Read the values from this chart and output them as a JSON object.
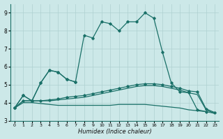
{
  "xlabel": "Humidex (Indice chaleur)",
  "background_color": "#cce8e8",
  "grid_color": "#aed0d0",
  "line_color": "#1a7068",
  "xlim": [
    -0.5,
    23.5
  ],
  "ylim": [
    3.0,
    9.5
  ],
  "yticks": [
    3,
    4,
    5,
    6,
    7,
    8,
    9
  ],
  "xticks": [
    0,
    1,
    2,
    3,
    4,
    5,
    6,
    7,
    8,
    9,
    10,
    11,
    12,
    13,
    14,
    15,
    16,
    17,
    18,
    19,
    20,
    21,
    22,
    23
  ],
  "series_main_x": [
    0,
    1,
    2,
    3,
    4,
    5,
    6,
    7,
    8,
    9,
    10,
    11,
    12,
    13,
    14,
    15,
    16,
    17,
    18,
    19,
    20,
    21,
    22
  ],
  "series_main_y": [
    3.7,
    4.4,
    4.1,
    5.1,
    5.8,
    5.7,
    5.3,
    5.15,
    7.75,
    7.6,
    8.5,
    8.4,
    8.0,
    8.5,
    8.5,
    9.0,
    8.7,
    6.8,
    5.1,
    4.6,
    4.55,
    3.6,
    3.5
  ],
  "series_small_x": [
    0,
    1,
    2,
    3,
    4,
    5,
    6,
    7
  ],
  "series_small_y": [
    3.7,
    4.4,
    4.1,
    5.1,
    5.8,
    5.7,
    5.3,
    5.15
  ],
  "series_flat1_x": [
    0,
    1,
    2,
    3,
    4,
    5,
    6,
    7,
    8,
    9,
    10,
    11,
    12,
    13,
    14,
    15,
    16,
    17,
    18,
    19,
    20,
    21,
    22,
    23
  ],
  "series_flat1_y": [
    3.7,
    4.1,
    4.1,
    4.1,
    4.15,
    4.2,
    4.3,
    4.35,
    4.4,
    4.5,
    4.6,
    4.7,
    4.8,
    4.9,
    5.0,
    5.05,
    5.05,
    5.0,
    4.9,
    4.8,
    4.65,
    4.6,
    3.65,
    3.45
  ],
  "series_flat2_x": [
    0,
    1,
    2,
    3,
    4,
    5,
    6,
    7,
    8,
    9,
    10,
    11,
    12,
    13,
    14,
    15,
    16,
    17,
    18,
    19,
    20,
    21,
    22,
    23
  ],
  "series_flat2_y": [
    3.7,
    4.1,
    4.1,
    4.1,
    4.1,
    4.15,
    4.2,
    4.25,
    4.3,
    4.4,
    4.5,
    4.6,
    4.7,
    4.8,
    4.9,
    4.95,
    4.95,
    4.9,
    4.8,
    4.7,
    4.55,
    4.45,
    3.6,
    3.4
  ],
  "series_decline_x": [
    0,
    1,
    2,
    3,
    4,
    5,
    6,
    7,
    8,
    9,
    10,
    11,
    12,
    13,
    14,
    15,
    16,
    17,
    18,
    19,
    20,
    21,
    22,
    23
  ],
  "series_decline_y": [
    3.7,
    4.0,
    4.0,
    3.95,
    3.9,
    3.85,
    3.85,
    3.85,
    3.85,
    3.85,
    3.85,
    3.85,
    3.9,
    3.9,
    3.9,
    3.9,
    3.85,
    3.8,
    3.75,
    3.7,
    3.6,
    3.55,
    3.5,
    3.4
  ]
}
